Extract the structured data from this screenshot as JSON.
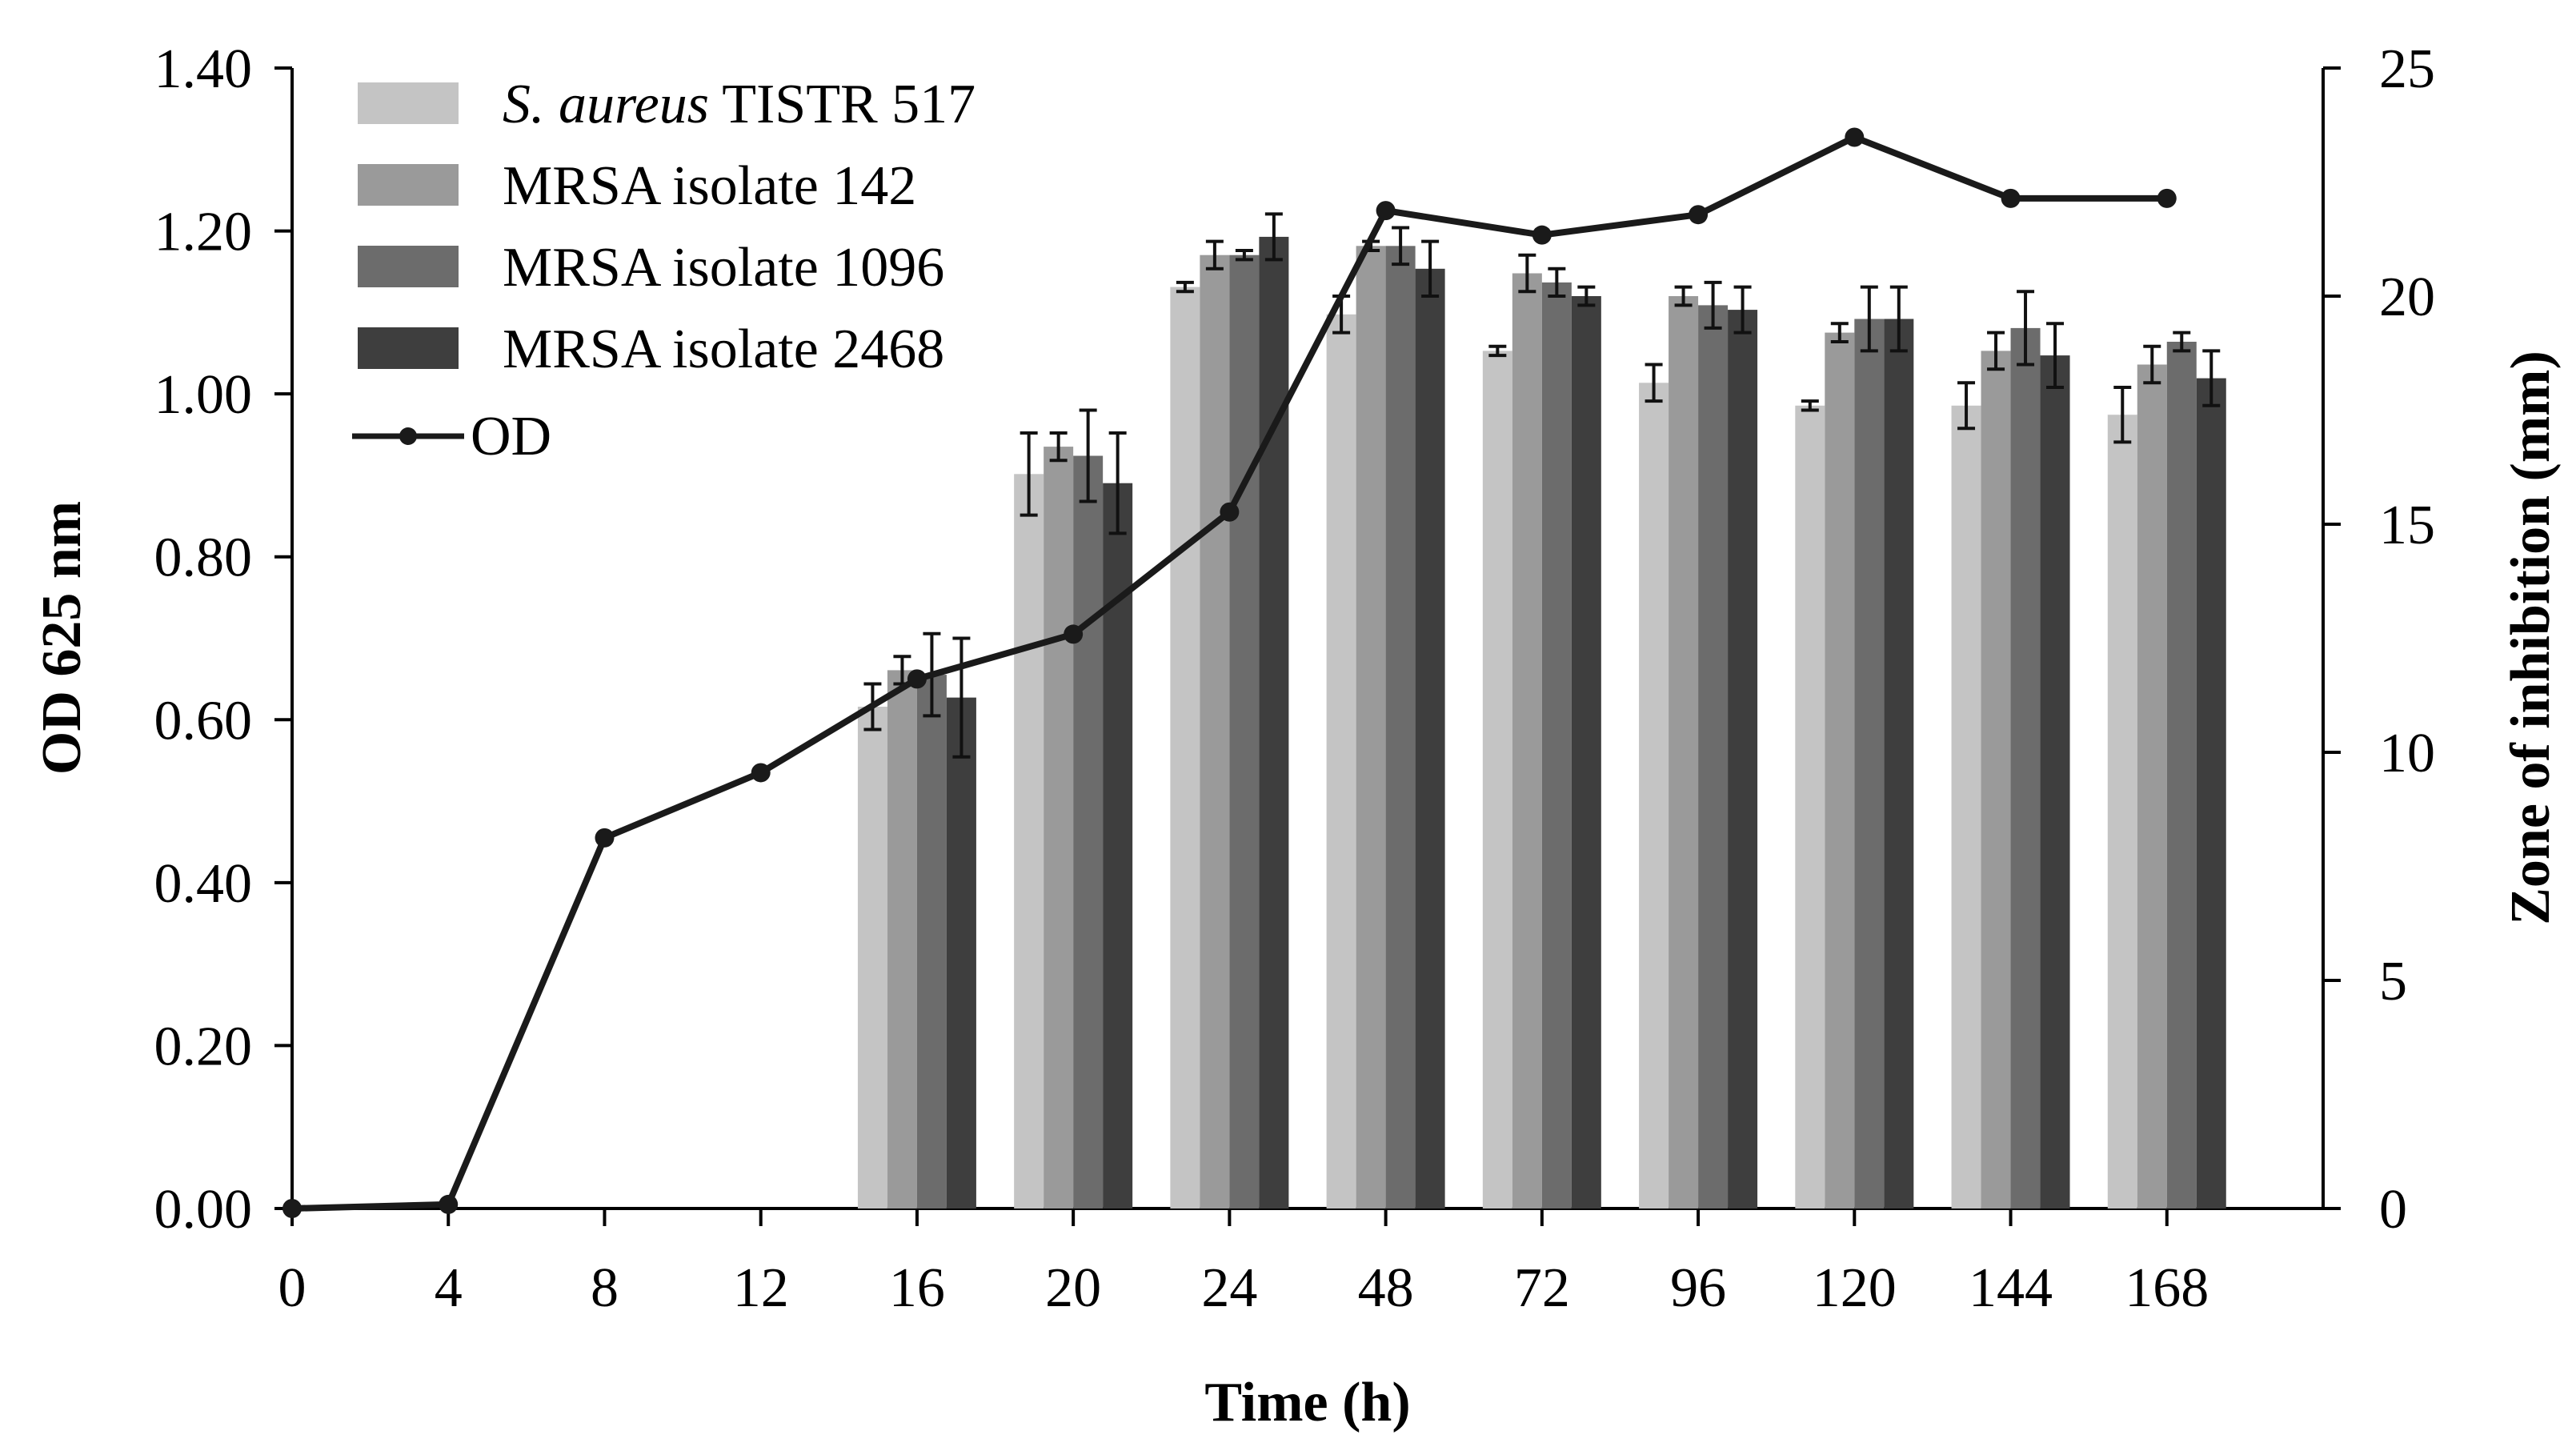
{
  "chart_data": {
    "type": "bar",
    "title": "",
    "xlabel": "Time (h)",
    "ylabel": "OD 625 nm",
    "y2label": "Zone of inhibition (mm)",
    "ylim": [
      0,
      1.4
    ],
    "y2lim": [
      0,
      25
    ],
    "y_ticks": [
      "0.00",
      "0.20",
      "0.40",
      "0.60",
      "0.80",
      "1.00",
      "1.20",
      "1.40"
    ],
    "y2_ticks": [
      "0",
      "5",
      "10",
      "15",
      "20",
      "25"
    ],
    "categories": [
      "0",
      "4",
      "8",
      "12",
      "16",
      "20",
      "24",
      "48",
      "72",
      "96",
      "120",
      "144",
      "168"
    ],
    "legend": {
      "placement": "top-left",
      "series_italic": "S. aureus",
      "series_rest": " TISTR 517",
      "items": [
        "MRSA isolate 142",
        "MRSA isolate 1096",
        "MRSA isolate 2468"
      ],
      "line_label": "OD"
    },
    "bar_axis": "right",
    "series": [
      {
        "name": "S. aureus TISTR 517",
        "color": "#c4c4c4",
        "values": [
          null,
          null,
          null,
          null,
          11.0,
          16.1,
          20.2,
          19.6,
          18.8,
          18.1,
          17.6,
          17.6,
          17.4
        ],
        "errors": [
          null,
          null,
          null,
          null,
          0.5,
          0.9,
          0.1,
          0.4,
          0.1,
          0.4,
          0.1,
          0.5,
          0.6
        ]
      },
      {
        "name": "MRSA isolate 142",
        "color": "#9a9a9a",
        "values": [
          null,
          null,
          null,
          null,
          11.8,
          16.7,
          20.9,
          21.1,
          20.5,
          20.0,
          19.2,
          18.8,
          18.5
        ],
        "errors": [
          null,
          null,
          null,
          null,
          0.3,
          0.3,
          0.3,
          0.1,
          0.4,
          0.2,
          0.2,
          0.4,
          0.4
        ]
      },
      {
        "name": "MRSA isolate 1096",
        "color": "#6c6c6c",
        "values": [
          null,
          null,
          null,
          null,
          11.7,
          16.5,
          20.9,
          21.1,
          20.3,
          19.8,
          19.5,
          19.3,
          19.0
        ],
        "errors": [
          null,
          null,
          null,
          null,
          0.9,
          1.0,
          0.1,
          0.4,
          0.3,
          0.5,
          0.7,
          0.8,
          0.2
        ]
      },
      {
        "name": "MRSA isolate 2468",
        "color": "#3e3e3e",
        "values": [
          null,
          null,
          null,
          null,
          11.2,
          15.9,
          21.3,
          20.6,
          20.0,
          19.7,
          19.5,
          18.7,
          18.2
        ],
        "errors": [
          null,
          null,
          null,
          null,
          1.3,
          1.1,
          0.5,
          0.6,
          0.2,
          0.5,
          0.7,
          0.7,
          0.6
        ]
      }
    ],
    "line_series": {
      "name": "OD",
      "color": "#1a1a1a",
      "axis": "left",
      "values": [
        0.0,
        0.005,
        0.455,
        0.535,
        0.65,
        0.705,
        0.855,
        1.225,
        1.195,
        1.22,
        1.315,
        1.24,
        1.24
      ]
    }
  }
}
